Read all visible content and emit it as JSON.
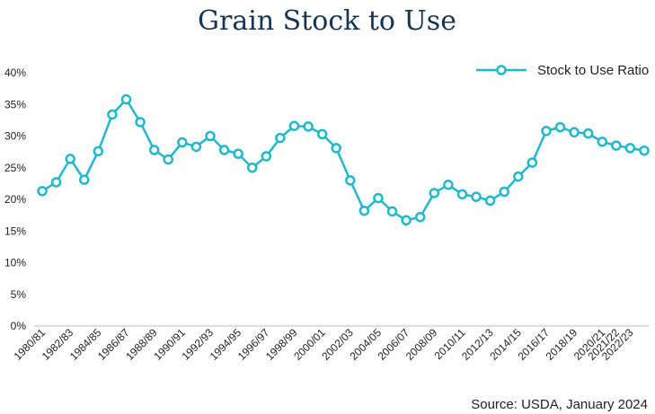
{
  "colors": {
    "series": "#22b8cc",
    "axis": "#bfbfbf",
    "title": "#163552",
    "text": "#222222"
  },
  "chart_data": {
    "type": "line",
    "title": "Grain Stock to Use",
    "source": "Source: USDA, January 2024",
    "xlabel": "",
    "ylabel": "",
    "ylim": [
      0,
      40
    ],
    "y_ticks": [
      "0%",
      "5%",
      "10%",
      "15%",
      "20%",
      "25%",
      "30%",
      "35%",
      "40%"
    ],
    "y_tick_values": [
      0,
      5,
      10,
      15,
      20,
      25,
      30,
      35,
      40
    ],
    "categories": [
      "1980/81",
      "1981/82",
      "1982/83",
      "1983/84",
      "1984/85",
      "1985/86",
      "1986/87",
      "1987/88",
      "1988/89",
      "1989/90",
      "1990/91",
      "1991/92",
      "1992/93",
      "1993/94",
      "1994/95",
      "1995/96",
      "1996/97",
      "1997/98",
      "1998/99",
      "1999/00",
      "2000/01",
      "2001/02",
      "2002/03",
      "2003/04",
      "2004/05",
      "2005/06",
      "2006/07",
      "2007/08",
      "2008/09",
      "2009/10",
      "2010/11",
      "2011/12",
      "2012/13",
      "2013/14",
      "2014/15",
      "2015/16",
      "2016/17",
      "2017/18",
      "2018/19",
      "2019/20",
      "2020/21",
      "2021/22",
      "2022/23",
      "2023/24"
    ],
    "x_tick_labels": [
      "1980/81",
      "1982/83",
      "1984/85",
      "1986/87",
      "1988/89",
      "1990/91",
      "1992/93",
      "1994/95",
      "1996/97",
      "1998/99",
      "2000/01",
      "2002/03",
      "2004/05",
      "2006/07",
      "2008/09",
      "2010/11",
      "2012/13",
      "2014/15",
      "2016/17",
      "2018/19",
      "2020/21",
      "2021/22",
      "2022/23"
    ],
    "x_tick_indices": [
      0,
      2,
      4,
      6,
      8,
      10,
      12,
      14,
      16,
      18,
      20,
      22,
      24,
      26,
      28,
      30,
      32,
      34,
      36,
      38,
      40,
      41,
      42
    ],
    "legend": "top-right",
    "grid": false,
    "series": [
      {
        "name": "Stock to Use Ratio",
        "values": [
          21.3,
          22.7,
          26.4,
          23.1,
          27.6,
          33.4,
          35.8,
          32.2,
          27.8,
          26.3,
          29.0,
          28.3,
          30.0,
          27.8,
          27.2,
          25.0,
          26.8,
          29.7,
          31.6,
          31.5,
          30.3,
          28.1,
          23.0,
          18.2,
          20.2,
          18.1,
          16.7,
          17.2,
          21.0,
          22.3,
          20.8,
          20.4,
          19.8,
          21.2,
          23.6,
          25.8,
          30.8,
          31.4,
          30.6,
          30.4,
          29.1,
          28.5,
          28.1,
          27.7
        ]
      }
    ]
  }
}
